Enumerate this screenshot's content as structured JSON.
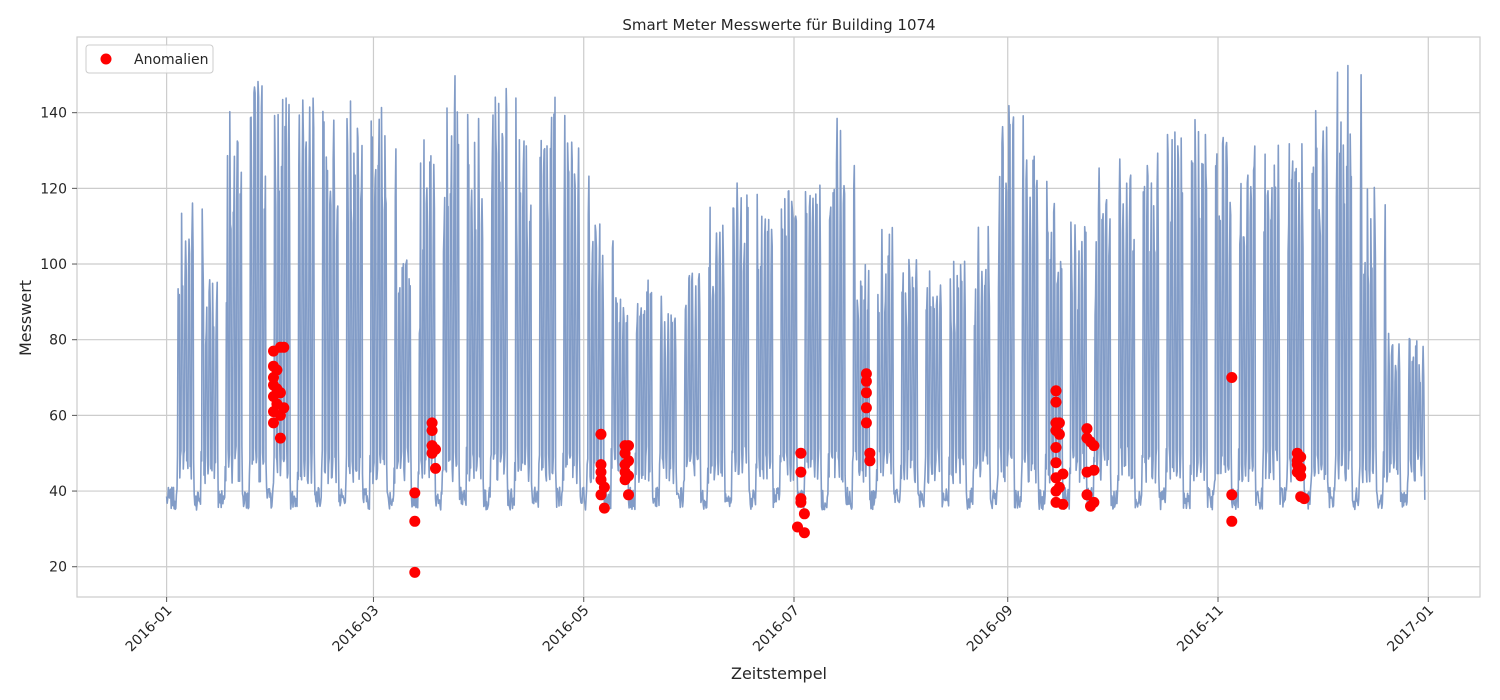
{
  "chart_data": {
    "type": "line",
    "title": "Smart Meter Messwerte für Building 1074",
    "xlabel": "Zeitstempel",
    "ylabel": "Messwert",
    "x_range": [
      "2015-12-06",
      "2017-01-16"
    ],
    "ylim": [
      12,
      160
    ],
    "x_ticks": [
      "2016-01",
      "2016-03",
      "2016-05",
      "2016-07",
      "2016-09",
      "2016-11",
      "2017-01"
    ],
    "y_ticks": [
      20,
      40,
      60,
      80,
      100,
      120,
      140
    ],
    "grid": true,
    "legend_position": "top-left",
    "colors": {
      "line": "#7b97c4",
      "anomaly": "#ff0000",
      "grid": "#cccccc",
      "frame": "#cccccc"
    },
    "series": [
      {
        "kind": "line",
        "x_start": "2016-01-01",
        "x_end": "2016-12-31",
        "weekly_peaks": [
          {
            "week": "2016-01-04",
            "peak": 102
          },
          {
            "week": "2016-01-11",
            "peak": 118
          },
          {
            "week": "2016-01-18",
            "peak": 97
          },
          {
            "week": "2016-01-25",
            "peak": 144
          },
          {
            "week": "2016-02-01",
            "peak": 150
          },
          {
            "week": "2016-02-08",
            "peak": 144
          },
          {
            "week": "2016-02-15",
            "peak": 145
          },
          {
            "week": "2016-02-22",
            "peak": 141
          },
          {
            "week": "2016-02-29",
            "peak": 146
          },
          {
            "week": "2016-03-07",
            "peak": 149
          },
          {
            "week": "2016-03-14",
            "peak": 102
          },
          {
            "week": "2016-03-21",
            "peak": 136
          },
          {
            "week": "2016-03-28",
            "peak": 150
          },
          {
            "week": "2016-04-04",
            "peak": 140
          },
          {
            "week": "2016-04-11",
            "peak": 147
          },
          {
            "week": "2016-04-18",
            "peak": 135
          },
          {
            "week": "2016-04-25",
            "peak": 150
          },
          {
            "week": "2016-05-02",
            "peak": 133
          },
          {
            "week": "2016-05-09",
            "peak": 112
          },
          {
            "week": "2016-05-16",
            "peak": 92
          },
          {
            "week": "2016-05-23",
            "peak": 99
          },
          {
            "week": "2016-05-30",
            "peak": 88
          },
          {
            "week": "2016-06-06",
            "peak": 100
          },
          {
            "week": "2016-06-13",
            "peak": 115
          },
          {
            "week": "2016-06-20",
            "peak": 123
          },
          {
            "week": "2016-06-27",
            "peak": 116
          },
          {
            "week": "2016-07-04",
            "peak": 124
          },
          {
            "week": "2016-07-11",
            "peak": 121
          },
          {
            "week": "2016-07-18",
            "peak": 139
          },
          {
            "week": "2016-07-25",
            "peak": 100
          },
          {
            "week": "2016-08-01",
            "peak": 110
          },
          {
            "week": "2016-08-08",
            "peak": 103
          },
          {
            "week": "2016-08-15",
            "peak": 104
          },
          {
            "week": "2016-08-22",
            "peak": 103
          },
          {
            "week": "2016-08-29",
            "peak": 112
          },
          {
            "week": "2016-09-05",
            "peak": 142
          },
          {
            "week": "2016-09-12",
            "peak": 133
          },
          {
            "week": "2016-09-19",
            "peak": 118
          },
          {
            "week": "2016-09-26",
            "peak": 112
          },
          {
            "week": "2016-10-03",
            "peak": 128
          },
          {
            "week": "2016-10-10",
            "peak": 126
          },
          {
            "week": "2016-10-17",
            "peak": 135
          },
          {
            "week": "2016-10-24",
            "peak": 136
          },
          {
            "week": "2016-10-31",
            "peak": 140
          },
          {
            "week": "2016-11-07",
            "peak": 135
          },
          {
            "week": "2016-11-14",
            "peak": 132
          },
          {
            "week": "2016-11-21",
            "peak": 132
          },
          {
            "week": "2016-11-28",
            "peak": 134
          },
          {
            "week": "2016-12-05",
            "peak": 142
          },
          {
            "week": "2016-12-12",
            "peak": 153
          },
          {
            "week": "2016-12-19",
            "peak": 121
          },
          {
            "week": "2016-12-26",
            "peak": 82
          }
        ],
        "baseline": 38
      },
      {
        "kind": "scatter",
        "name": "Anomalien",
        "points": [
          {
            "x": "2016-02-01",
            "y": 77
          },
          {
            "x": "2016-02-01",
            "y": 73
          },
          {
            "x": "2016-02-01",
            "y": 70
          },
          {
            "x": "2016-02-01",
            "y": 68
          },
          {
            "x": "2016-02-01",
            "y": 65
          },
          {
            "x": "2016-02-01",
            "y": 61
          },
          {
            "x": "2016-02-01",
            "y": 58
          },
          {
            "x": "2016-02-02",
            "y": 72
          },
          {
            "x": "2016-02-02",
            "y": 67
          },
          {
            "x": "2016-02-02",
            "y": 63
          },
          {
            "x": "2016-02-03",
            "y": 78
          },
          {
            "x": "2016-02-03",
            "y": 66
          },
          {
            "x": "2016-02-03",
            "y": 60
          },
          {
            "x": "2016-02-03",
            "y": 54
          },
          {
            "x": "2016-02-04",
            "y": 78
          },
          {
            "x": "2016-02-04",
            "y": 62
          },
          {
            "x": "2016-03-13",
            "y": 39.5
          },
          {
            "x": "2016-03-13",
            "y": 32
          },
          {
            "x": "2016-03-13",
            "y": 18.5
          },
          {
            "x": "2016-03-18",
            "y": 58
          },
          {
            "x": "2016-03-18",
            "y": 56
          },
          {
            "x": "2016-03-18",
            "y": 52
          },
          {
            "x": "2016-03-18",
            "y": 50
          },
          {
            "x": "2016-03-19",
            "y": 51
          },
          {
            "x": "2016-03-19",
            "y": 46
          },
          {
            "x": "2016-05-06",
            "y": 55
          },
          {
            "x": "2016-05-06",
            "y": 47
          },
          {
            "x": "2016-05-06",
            "y": 45
          },
          {
            "x": "2016-05-06",
            "y": 43
          },
          {
            "x": "2016-05-06",
            "y": 39
          },
          {
            "x": "2016-05-07",
            "y": 41
          },
          {
            "x": "2016-05-07",
            "y": 35.5
          },
          {
            "x": "2016-05-13",
            "y": 52
          },
          {
            "x": "2016-05-13",
            "y": 50
          },
          {
            "x": "2016-05-13",
            "y": 47
          },
          {
            "x": "2016-05-13",
            "y": 45
          },
          {
            "x": "2016-05-13",
            "y": 43
          },
          {
            "x": "2016-05-14",
            "y": 52
          },
          {
            "x": "2016-05-14",
            "y": 48
          },
          {
            "x": "2016-05-14",
            "y": 44
          },
          {
            "x": "2016-05-14",
            "y": 39
          },
          {
            "x": "2016-07-02",
            "y": 30.5
          },
          {
            "x": "2016-07-03",
            "y": 50
          },
          {
            "x": "2016-07-03",
            "y": 45
          },
          {
            "x": "2016-07-03",
            "y": 38
          },
          {
            "x": "2016-07-03",
            "y": 37
          },
          {
            "x": "2016-07-04",
            "y": 34
          },
          {
            "x": "2016-07-04",
            "y": 29
          },
          {
            "x": "2016-07-22",
            "y": 71
          },
          {
            "x": "2016-07-22",
            "y": 69
          },
          {
            "x": "2016-07-22",
            "y": 66
          },
          {
            "x": "2016-07-22",
            "y": 62
          },
          {
            "x": "2016-07-22",
            "y": 58
          },
          {
            "x": "2016-07-23",
            "y": 50
          },
          {
            "x": "2016-07-23",
            "y": 48
          },
          {
            "x": "2016-09-15",
            "y": 66.5
          },
          {
            "x": "2016-09-15",
            "y": 63.5
          },
          {
            "x": "2016-09-15",
            "y": 58
          },
          {
            "x": "2016-09-15",
            "y": 56
          },
          {
            "x": "2016-09-15",
            "y": 51.5
          },
          {
            "x": "2016-09-15",
            "y": 47.5
          },
          {
            "x": "2016-09-15",
            "y": 43.5
          },
          {
            "x": "2016-09-15",
            "y": 40
          },
          {
            "x": "2016-09-15",
            "y": 37
          },
          {
            "x": "2016-09-16",
            "y": 58
          },
          {
            "x": "2016-09-16",
            "y": 55
          },
          {
            "x": "2016-09-16",
            "y": 41
          },
          {
            "x": "2016-09-17",
            "y": 44.5
          },
          {
            "x": "2016-09-17",
            "y": 36.5
          },
          {
            "x": "2016-09-24",
            "y": 56.5
          },
          {
            "x": "2016-09-24",
            "y": 54
          },
          {
            "x": "2016-09-24",
            "y": 45
          },
          {
            "x": "2016-09-24",
            "y": 39
          },
          {
            "x": "2016-09-25",
            "y": 36
          },
          {
            "x": "2016-09-25",
            "y": 53
          },
          {
            "x": "2016-09-26",
            "y": 52
          },
          {
            "x": "2016-09-26",
            "y": 45.5
          },
          {
            "x": "2016-09-26",
            "y": 37
          },
          {
            "x": "2016-11-05",
            "y": 70
          },
          {
            "x": "2016-11-05",
            "y": 39
          },
          {
            "x": "2016-11-05",
            "y": 32
          },
          {
            "x": "2016-11-24",
            "y": 50
          },
          {
            "x": "2016-11-24",
            "y": 48
          },
          {
            "x": "2016-11-24",
            "y": 47
          },
          {
            "x": "2016-11-24",
            "y": 45
          },
          {
            "x": "2016-11-25",
            "y": 49
          },
          {
            "x": "2016-11-25",
            "y": 46
          },
          {
            "x": "2016-11-25",
            "y": 44
          },
          {
            "x": "2016-11-25",
            "y": 38.5
          },
          {
            "x": "2016-11-26",
            "y": 38
          }
        ]
      }
    ]
  }
}
